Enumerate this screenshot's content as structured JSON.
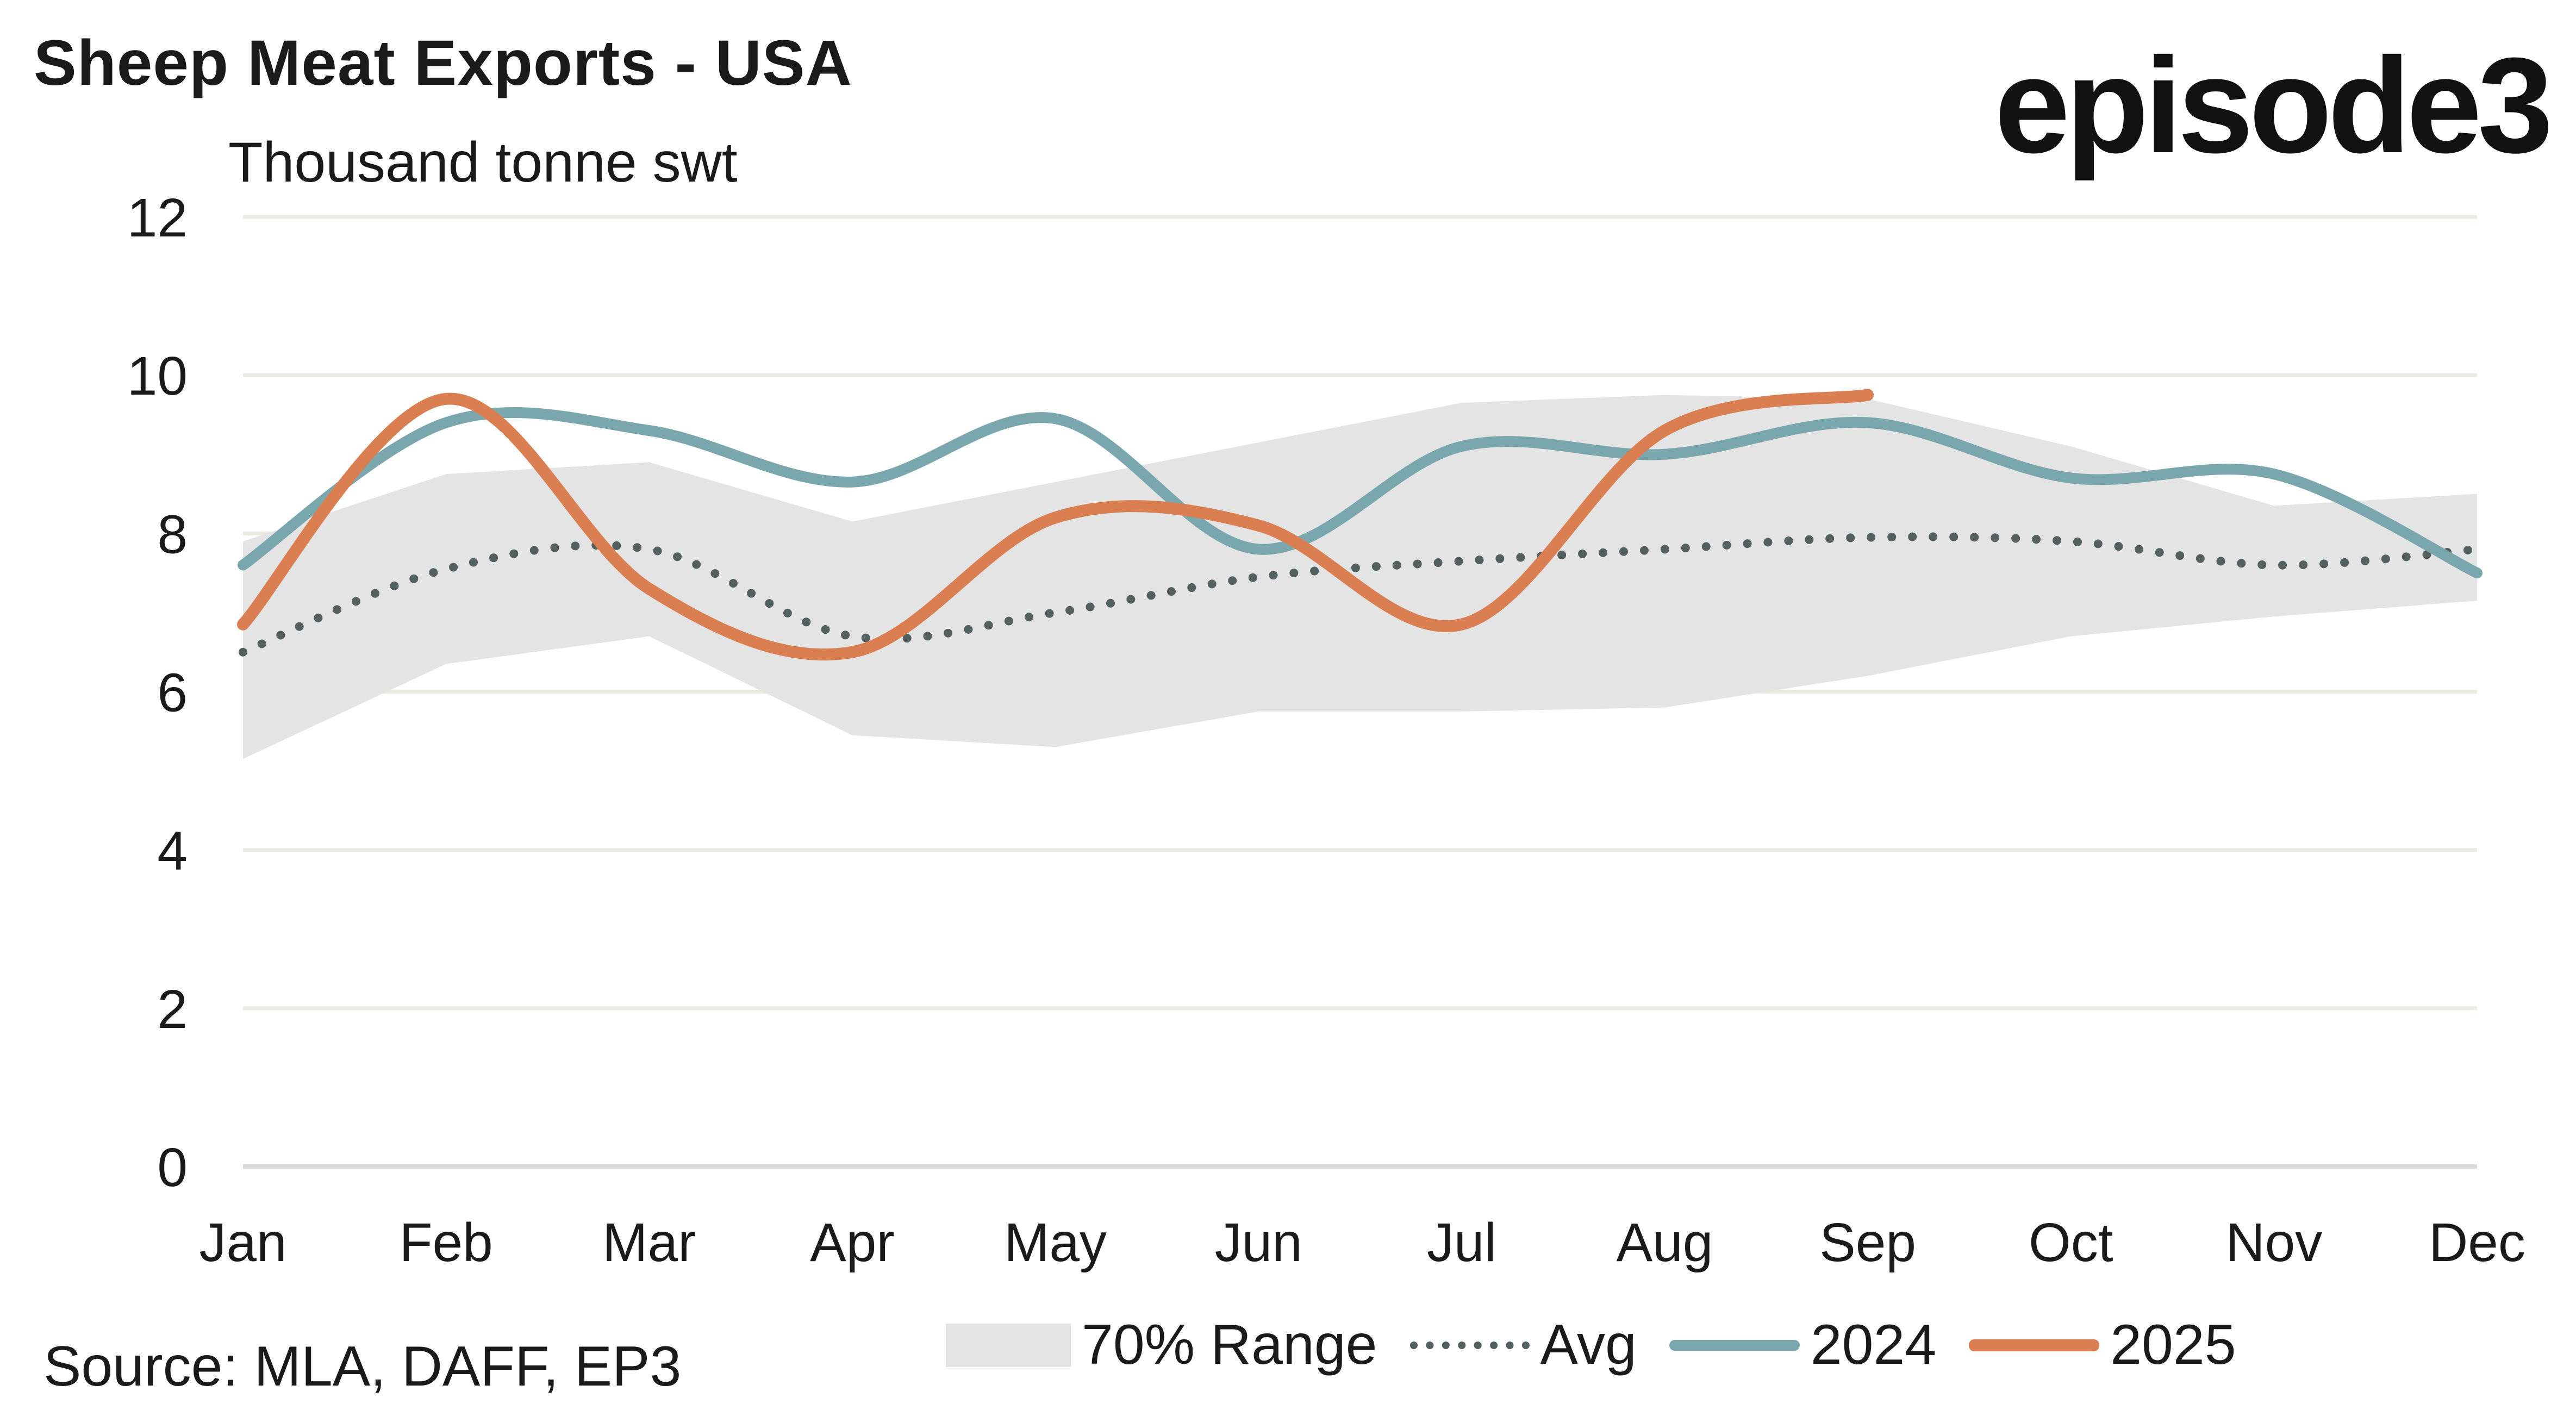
{
  "header": {
    "title": "Sheep Meat Exports - USA",
    "logo": "episode3",
    "unit_label": "Thousand tonne swt"
  },
  "footer": {
    "source": "Source: MLA, DAFF, EP3"
  },
  "colors": {
    "range": "#e4e4e4",
    "avg": "#52605f",
    "y2024": "#7aa7ad",
    "y2025": "#d97f52",
    "grid": "#ecebe2",
    "axis": "#d9d9d9"
  },
  "chart_data": {
    "type": "line",
    "title": "Sheep Meat Exports - USA",
    "xlabel": "",
    "ylabel": "Thousand tonne swt",
    "ylim": [
      0,
      12
    ],
    "yticks": [
      "0",
      "2",
      "4",
      "6",
      "8",
      "10",
      "12"
    ],
    "ytick_values": [
      0,
      2,
      4,
      6,
      8,
      10,
      12
    ],
    "categories": [
      "Jan",
      "Feb",
      "Mar",
      "Apr",
      "May",
      "Jun",
      "Jul",
      "Aug",
      "Sep",
      "Oct",
      "Nov",
      "Dec"
    ],
    "grid": true,
    "legend_position": "bottom",
    "band": {
      "name": "70% Range",
      "upper": [
        7.9,
        8.75,
        8.9,
        8.15,
        8.65,
        9.15,
        9.65,
        9.75,
        9.7,
        9.1,
        8.35,
        8.5
      ],
      "lower": [
        5.15,
        6.35,
        6.7,
        5.45,
        5.3,
        5.75,
        5.75,
        5.8,
        6.2,
        6.7,
        6.95,
        7.15
      ]
    },
    "series": [
      {
        "name": "Avg",
        "style": "dotted",
        "values": [
          6.5,
          7.55,
          7.8,
          6.7,
          7.0,
          7.45,
          7.65,
          7.8,
          7.95,
          7.9,
          7.6,
          7.8
        ]
      },
      {
        "name": "2024",
        "style": "solid",
        "values": [
          7.6,
          9.4,
          9.3,
          8.65,
          9.45,
          7.8,
          9.1,
          9.0,
          9.4,
          8.7,
          8.75,
          7.5
        ]
      },
      {
        "name": "2025",
        "style": "solid",
        "values": [
          6.85,
          9.7,
          7.3,
          6.5,
          8.2,
          8.1,
          6.85,
          9.3,
          9.75,
          null,
          null,
          null
        ]
      }
    ]
  },
  "legend": {
    "items": [
      {
        "label": "70% Range"
      },
      {
        "label": "Avg"
      },
      {
        "label": "2024"
      },
      {
        "label": "2025"
      }
    ]
  }
}
